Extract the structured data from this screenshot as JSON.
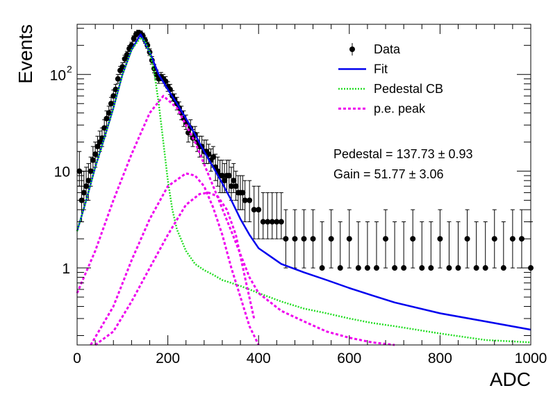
{
  "chart_data": {
    "type": "scatter",
    "title": "",
    "xlabel": "ADC",
    "ylabel": "Events",
    "xlim": [
      0,
      1000
    ],
    "ylim": [
      0.16,
      330
    ],
    "yscale": "log",
    "xticks": [
      "0",
      "200",
      "400",
      "600",
      "800",
      "1000"
    ],
    "yticks": [
      {
        "value": 1,
        "base": "1",
        "exp": ""
      },
      {
        "value": 10,
        "base": "10",
        "exp": ""
      },
      {
        "value": 100,
        "base": "10",
        "exp": "2"
      }
    ],
    "legend": {
      "position": "top-right",
      "entries": [
        {
          "label": "Data",
          "style": "marker",
          "color": "#000000"
        },
        {
          "label": "Fit",
          "style": "solid",
          "color": "#0000ee"
        },
        {
          "label": "Pedestal CB",
          "style": "dotted",
          "color": "#22dd22"
        },
        {
          "label": "p.e. peak",
          "style": "dashed",
          "color": "#ee00ee"
        }
      ]
    },
    "annotations": [
      {
        "text": "Pedestal = 137.73",
        "pm": "0.93"
      },
      {
        "text": "Gain = 51.77",
        "pm": "3.06"
      }
    ],
    "series": [
      {
        "name": "Data",
        "kind": "points",
        "color": "#000000",
        "x": [
          5,
          10,
          15,
          20,
          25,
          30,
          35,
          40,
          45,
          50,
          55,
          60,
          65,
          70,
          75,
          80,
          85,
          90,
          95,
          100,
          105,
          110,
          115,
          120,
          125,
          130,
          135,
          140,
          145,
          150,
          155,
          160,
          165,
          170,
          175,
          180,
          185,
          190,
          195,
          200,
          205,
          210,
          215,
          220,
          225,
          230,
          235,
          240,
          245,
          250,
          255,
          260,
          265,
          270,
          275,
          280,
          285,
          290,
          295,
          300,
          305,
          310,
          315,
          320,
          325,
          330,
          335,
          340,
          345,
          350,
          355,
          360,
          365,
          370,
          380,
          390,
          400,
          410,
          420,
          430,
          440,
          450,
          460,
          480,
          500,
          520,
          540,
          560,
          580,
          600,
          620,
          640,
          660,
          680,
          700,
          720,
          740,
          760,
          780,
          800,
          820,
          840,
          860,
          880,
          900,
          920,
          940,
          960,
          980,
          1000
        ],
        "y": [
          10,
          5,
          6,
          7,
          8,
          10,
          13,
          15,
          18,
          20,
          22,
          28,
          35,
          40,
          50,
          60,
          70,
          90,
          110,
          120,
          145,
          160,
          185,
          200,
          235,
          260,
          270,
          265,
          250,
          225,
          200,
          170,
          140,
          115,
          100,
          90,
          95,
          90,
          85,
          75,
          70,
          60,
          55,
          50,
          45,
          40,
          35,
          32,
          25,
          28,
          22,
          24,
          20,
          18,
          18,
          16,
          16,
          15,
          13,
          14,
          11,
          10,
          9,
          9,
          8,
          9,
          9,
          7,
          8,
          7,
          6,
          6,
          6,
          5,
          5,
          4,
          4,
          3,
          3,
          3,
          3,
          3,
          2,
          2,
          2,
          2,
          1,
          2,
          1,
          2,
          1,
          1,
          1,
          2,
          1,
          1,
          2,
          1,
          1,
          2,
          1,
          1,
          2,
          1,
          1,
          2,
          1,
          2,
          2,
          1
        ],
        "y_err_up": [
          6,
          5,
          4,
          4,
          4,
          4,
          5,
          5,
          5,
          6,
          6,
          6,
          7,
          7,
          8,
          9,
          9,
          10,
          11,
          12,
          13,
          13,
          14,
          15,
          16,
          17,
          17,
          17,
          17,
          16,
          15,
          14,
          13,
          12,
          11,
          10,
          10,
          10,
          10,
          9,
          9,
          8,
          8,
          8,
          7,
          7,
          7,
          6,
          6,
          6,
          5,
          5,
          5,
          5,
          5,
          5,
          5,
          4,
          4,
          4,
          4,
          4,
          4,
          4,
          4,
          4,
          4,
          4,
          4,
          3,
          3,
          3,
          3,
          3,
          3,
          3,
          3,
          3,
          3,
          3,
          3,
          3,
          2,
          2,
          2,
          2,
          2,
          2,
          2,
          2,
          2,
          2,
          2,
          2,
          2,
          2,
          2,
          2,
          2,
          2,
          2,
          2,
          2,
          2,
          2,
          2,
          2,
          2,
          2,
          2
        ],
        "y_err_dn": [
          3,
          2,
          2,
          2,
          3,
          3,
          3,
          4,
          4,
          4,
          4,
          5,
          6,
          6,
          7,
          8,
          8,
          9,
          10,
          11,
          12,
          12,
          13,
          14,
          15,
          16,
          16,
          16,
          16,
          15,
          14,
          13,
          12,
          11,
          10,
          9,
          9,
          9,
          9,
          8,
          8,
          7,
          7,
          7,
          6,
          6,
          6,
          5,
          5,
          5,
          4,
          4,
          4,
          4,
          4,
          4,
          4,
          3,
          3,
          3,
          3,
          3,
          3,
          3,
          2,
          3,
          3,
          2,
          2,
          2,
          2,
          2,
          2,
          2,
          2,
          2,
          2,
          1,
          1,
          1,
          1,
          1,
          1,
          1,
          1,
          1,
          0,
          1,
          0,
          1,
          0,
          0,
          0,
          1,
          0,
          0,
          1,
          0,
          0,
          1,
          0,
          0,
          1,
          0,
          0,
          1,
          0,
          1,
          1,
          0
        ]
      },
      {
        "name": "Fit",
        "kind": "curve",
        "color": "#0000ee",
        "x": [
          0,
          20,
          40,
          60,
          80,
          100,
          120,
          140,
          160,
          180,
          200,
          220,
          240,
          260,
          280,
          300,
          320,
          340,
          360,
          380,
          400,
          450,
          500,
          550,
          600,
          650,
          700,
          800,
          900,
          1000
        ],
        "y": [
          2.4,
          5,
          11,
          22,
          45,
          100,
          180,
          260,
          170,
          100,
          70,
          50,
          35,
          24,
          16,
          11,
          7.5,
          5,
          3.2,
          2.2,
          1.6,
          1.1,
          0.9,
          0.75,
          0.62,
          0.52,
          0.44,
          0.34,
          0.28,
          0.23
        ]
      },
      {
        "name": "Pedestal CB",
        "kind": "curve",
        "color": "#22dd22",
        "x": [
          0,
          20,
          40,
          60,
          80,
          100,
          120,
          140,
          150,
          160,
          170,
          180,
          190,
          200,
          210,
          220,
          240,
          260,
          280,
          300,
          320,
          340,
          360,
          380,
          400,
          450,
          500,
          550,
          600,
          650,
          700,
          800,
          900,
          1000
        ],
        "y": [
          2.4,
          5,
          11,
          22,
          45,
          100,
          180,
          240,
          220,
          170,
          105,
          50,
          20,
          8,
          4,
          2.5,
          1.5,
          1.1,
          0.95,
          0.85,
          0.75,
          0.7,
          0.65,
          0.6,
          0.55,
          0.45,
          0.38,
          0.34,
          0.3,
          0.27,
          0.25,
          0.21,
          0.18,
          0.17
        ]
      },
      {
        "name": "p.e. peak",
        "kind": "curve",
        "color": "#ee00ee",
        "x": [
          0,
          40,
          80,
          120,
          160,
          190,
          220,
          260,
          300,
          340,
          380,
          400,
          450,
          500,
          550,
          600,
          650,
          700
        ],
        "y": [
          0.55,
          1.5,
          5,
          15,
          40,
          60,
          45,
          20,
          7,
          2.4,
          0.8,
          0.55,
          0.36,
          0.28,
          0.22,
          0.19,
          0.17,
          0.16
        ]
      },
      {
        "name": "p.e. peak",
        "kind": "curve",
        "color": "#ee00ee",
        "x": [
          30,
          80,
          120,
          160,
          200,
          240,
          260,
          280,
          300,
          320,
          340,
          360,
          380,
          400
        ],
        "y": [
          0.16,
          0.4,
          1.2,
          3.2,
          7,
          9.5,
          9,
          7,
          4.2,
          2.2,
          1.0,
          0.5,
          0.25,
          0.16
        ]
      },
      {
        "name": "p.e. peak",
        "kind": "curve",
        "color": "#ee00ee",
        "x": [
          40,
          80,
          120,
          160,
          200,
          240,
          270,
          290,
          310,
          330,
          350,
          370,
          390
        ],
        "y": [
          0.16,
          0.22,
          0.45,
          1.0,
          2.2,
          4.5,
          5.8,
          6.0,
          5.5,
          4.0,
          2.2,
          0.8,
          0.3
        ]
      }
    ]
  }
}
